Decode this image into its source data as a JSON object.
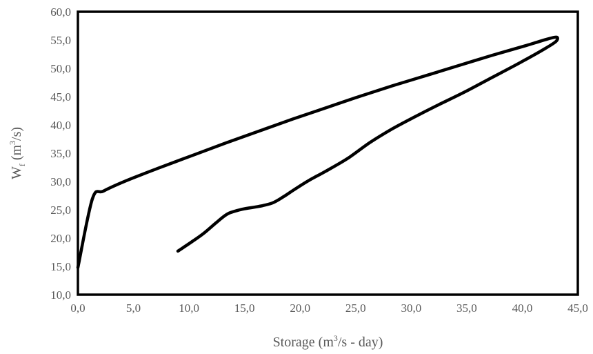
{
  "chart_data": {
    "type": "line",
    "xlabel": {
      "main": "Storage (m",
      "sup": "3",
      "rest": "/s - day)"
    },
    "ylabel": {
      "main": "W",
      "sub": "f",
      "rest1": " (m",
      "sup": "3",
      "rest2": "/s)"
    },
    "xlim": [
      0,
      45
    ],
    "ylim": [
      10,
      60
    ],
    "x_ticks": [
      "0,0",
      "5,0",
      "10,0",
      "15,0",
      "20,0",
      "25,0",
      "30,0",
      "35,0",
      "40,0",
      "45,0"
    ],
    "y_ticks": [
      "10,0",
      "15,0",
      "20,0",
      "25,0",
      "30,0",
      "35,0",
      "40,0",
      "45,0",
      "50,0",
      "55,0",
      "60,0"
    ],
    "grid": false,
    "series": [
      {
        "color": "#000000",
        "x": [
          9.0,
          10.3,
          11.3,
          12.5,
          13.5,
          14.8,
          16.3,
          17.5,
          18.5,
          19.5,
          20.8,
          22.3,
          24.3,
          26.3,
          28.3,
          30.3,
          32.3,
          34.8,
          37.3,
          39.8,
          41.8,
          43.0,
          43.1,
          42.3,
          41.3,
          40.3,
          37.3,
          34.3,
          31.3,
          28.3,
          25.3,
          22.3,
          19.3,
          16.3,
          13.3,
          10.3,
          7.3,
          4.3,
          2.3,
          1.3,
          0.0
        ],
        "y": [
          17.7,
          19.4,
          20.8,
          22.8,
          24.3,
          25.1,
          25.6,
          26.2,
          27.3,
          28.6,
          30.2,
          31.8,
          34.1,
          36.9,
          39.3,
          41.4,
          43.4,
          45.8,
          48.4,
          51.0,
          53.2,
          54.7,
          55.5,
          55.2,
          54.6,
          54.0,
          52.3,
          50.5,
          48.7,
          46.9,
          45.0,
          43.0,
          41.0,
          38.9,
          36.8,
          34.6,
          32.4,
          30.1,
          28.3,
          26.9,
          14.8
        ]
      }
    ]
  }
}
